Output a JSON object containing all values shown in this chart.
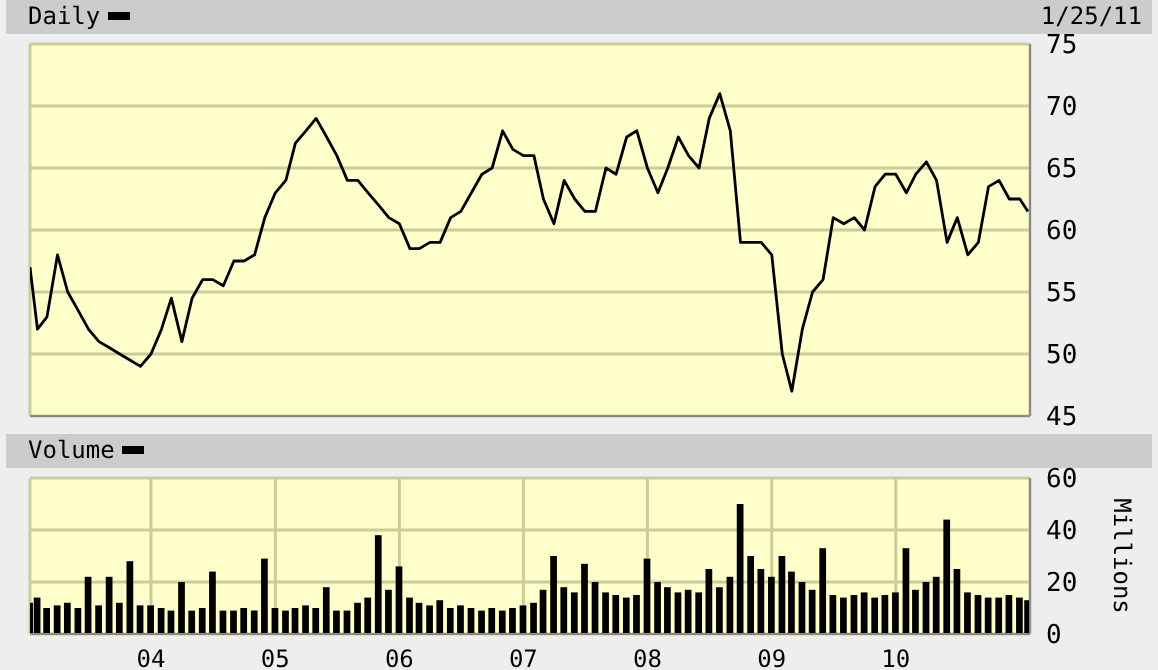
{
  "chart_data": [
    {
      "type": "line",
      "subtitle": "1/25/11",
      "x": [
        "2003-01-10",
        "2003-02",
        "2003-03",
        "2003-04",
        "2003-05",
        "2003-06",
        "2003-07",
        "2003-08",
        "2003-09",
        "2003-10",
        "2003-11",
        "2003-12",
        "2004-01",
        "2004-02",
        "2004-03",
        "2004-04",
        "2004-05",
        "2004-06",
        "2004-07",
        "2004-08",
        "2004-09",
        "2004-10",
        "2004-11",
        "2004-12",
        "2005-01",
        "2005-02",
        "2005-03",
        "2005-04",
        "2005-05",
        "2005-06",
        "2005-07",
        "2005-08",
        "2005-09",
        "2005-10",
        "2005-11",
        "2005-12",
        "2006-01",
        "2006-02",
        "2006-03",
        "2006-04",
        "2006-05",
        "2006-06",
        "2006-07",
        "2006-08",
        "2006-09",
        "2006-10",
        "2006-11",
        "2006-12",
        "2007-01",
        "2007-02",
        "2007-03",
        "2007-04",
        "2007-05",
        "2007-06",
        "2007-07",
        "2007-08",
        "2007-09",
        "2007-10",
        "2007-11",
        "2007-12",
        "2008-01",
        "2008-02",
        "2008-03",
        "2008-04",
        "2008-05",
        "2008-06",
        "2008-07",
        "2008-08",
        "2008-09",
        "2008-10",
        "2008-11",
        "2008-12",
        "2009-01",
        "2009-02",
        "2009-03",
        "2009-04",
        "2009-05",
        "2009-06",
        "2009-07",
        "2009-08",
        "2009-09",
        "2009-10",
        "2009-11",
        "2009-12",
        "2010-01",
        "2010-02",
        "2010-03",
        "2010-04",
        "2010-05",
        "2010-06",
        "2010-07",
        "2010-08",
        "2010-09",
        "2010-10",
        "2010-11",
        "2010-12",
        "2011-01",
        "2011-01-25"
      ],
      "series": [
        {
          "name": "Daily",
          "color": "#000000",
          "values": [
            57,
            52,
            53,
            58,
            55,
            53.5,
            52,
            51,
            50.5,
            50,
            49.5,
            49,
            50,
            52,
            54.5,
            51,
            54.5,
            56,
            56,
            55.5,
            57.5,
            57.5,
            58,
            61,
            63,
            64,
            67,
            68,
            69,
            67.5,
            66,
            64,
            64,
            63,
            62,
            61,
            60.5,
            58.5,
            58.5,
            59,
            59,
            61,
            61.5,
            63,
            64.5,
            65,
            68,
            66.5,
            66,
            66,
            62.5,
            60.5,
            64,
            62.5,
            61.5,
            61.5,
            65,
            64.5,
            67.5,
            68,
            65,
            63,
            65,
            67.5,
            66,
            65,
            69,
            71,
            68,
            59,
            59,
            59,
            58,
            50,
            47,
            52,
            55,
            56,
            61,
            60.5,
            61,
            60,
            63.5,
            64.5,
            64.5,
            63,
            64.5,
            65.5,
            64,
            59,
            61,
            58,
            59,
            63.5,
            64,
            62.5,
            62.5,
            61.5
          ]
        }
      ],
      "xlim": [
        "2003-01-10",
        "2011-01-31"
      ],
      "xticks": [
        {
          "value": "2004-01-01",
          "label": null
        },
        {
          "value": "2005-01-01",
          "label": null
        },
        {
          "value": "2006-01-01",
          "label": null
        },
        {
          "value": "2007-01-01",
          "label": null
        },
        {
          "value": "2008-01-01",
          "label": null
        },
        {
          "value": "2009-01-01",
          "label": null
        },
        {
          "value": "2010-01-01",
          "label": null
        }
      ],
      "ylim": [
        45,
        75
      ],
      "yticks": [
        45,
        50,
        55,
        60,
        65,
        70,
        75
      ],
      "grid": true,
      "legend": "top left",
      "tick_labels": "y"
    },
    {
      "type": "bar",
      "ylabel": "Millions",
      "x": [
        "2003-01-10",
        "2003-02",
        "2003-03",
        "2003-04",
        "2003-05",
        "2003-06",
        "2003-07",
        "2003-08",
        "2003-09",
        "2003-10",
        "2003-11",
        "2003-12",
        "2004-01",
        "2004-02",
        "2004-03",
        "2004-04",
        "2004-05",
        "2004-06",
        "2004-07",
        "2004-08",
        "2004-09",
        "2004-10",
        "2004-11",
        "2004-12",
        "2005-01",
        "2005-02",
        "2005-03",
        "2005-04",
        "2005-05",
        "2005-06",
        "2005-07",
        "2005-08",
        "2005-09",
        "2005-10",
        "2005-11",
        "2005-12",
        "2006-01",
        "2006-02",
        "2006-03",
        "2006-04",
        "2006-05",
        "2006-06",
        "2006-07",
        "2006-08",
        "2006-09",
        "2006-10",
        "2006-11",
        "2006-12",
        "2007-01",
        "2007-02",
        "2007-03",
        "2007-04",
        "2007-05",
        "2007-06",
        "2007-07",
        "2007-08",
        "2007-09",
        "2007-10",
        "2007-11",
        "2007-12",
        "2008-01",
        "2008-02",
        "2008-03",
        "2008-04",
        "2008-05",
        "2008-06",
        "2008-07",
        "2008-08",
        "2008-09",
        "2008-10",
        "2008-11",
        "2008-12",
        "2009-01",
        "2009-02",
        "2009-03",
        "2009-04",
        "2009-05",
        "2009-06",
        "2009-07",
        "2009-08",
        "2009-09",
        "2009-10",
        "2009-11",
        "2009-12",
        "2010-01",
        "2010-02",
        "2010-03",
        "2010-04",
        "2010-05",
        "2010-06",
        "2010-07",
        "2010-08",
        "2010-09",
        "2010-10",
        "2010-11",
        "2010-12",
        "2011-01",
        "2011-01-25"
      ],
      "series": [
        {
          "name": "Volume",
          "color": "#000000",
          "values": [
            12,
            14,
            10,
            11,
            12,
            10,
            22,
            11,
            22,
            12,
            28,
            11,
            11,
            10,
            9,
            20,
            9,
            10,
            24,
            9,
            9,
            10,
            9,
            29,
            10,
            9,
            10,
            11,
            10,
            18,
            9,
            9,
            12,
            14,
            38,
            17,
            26,
            14,
            12,
            11,
            13,
            10,
            11,
            10,
            9,
            10,
            9,
            10,
            11,
            12,
            17,
            30,
            18,
            16,
            27,
            20,
            16,
            15,
            14,
            15,
            29,
            20,
            18,
            16,
            17,
            16,
            25,
            18,
            22,
            50,
            30,
            25,
            22,
            30,
            24,
            20,
            17,
            33,
            15,
            14,
            15,
            16,
            14,
            15,
            16,
            33,
            17,
            20,
            22,
            44,
            25,
            16,
            15,
            14,
            14,
            15,
            14,
            13
          ]
        }
      ],
      "xlim": [
        "2003-01-10",
        "2011-01-31"
      ],
      "xticks": [
        {
          "value": "2004-01-01",
          "label": "04"
        },
        {
          "value": "2005-01-01",
          "label": "05"
        },
        {
          "value": "2006-01-01",
          "label": "06"
        },
        {
          "value": "2007-01-01",
          "label": "07"
        },
        {
          "value": "2008-01-01",
          "label": "08"
        },
        {
          "value": "2009-01-01",
          "label": "09"
        },
        {
          "value": "2010-01-01",
          "label": "10"
        }
      ],
      "ylim": [
        0,
        60
      ],
      "yticks": [
        0,
        20,
        40,
        60
      ],
      "grid": true,
      "legend": "top left"
    }
  ]
}
